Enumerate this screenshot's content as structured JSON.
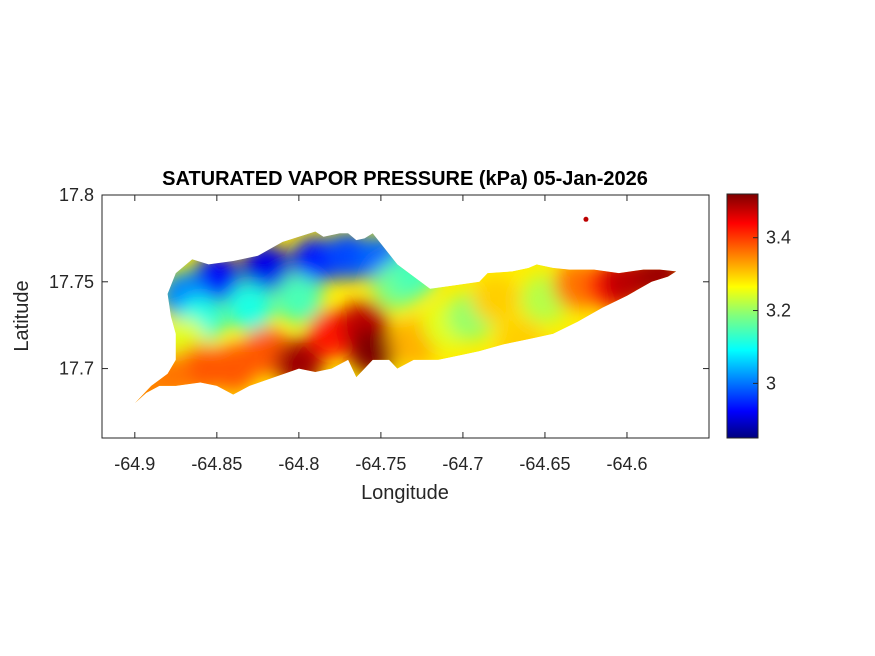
{
  "chart_data": {
    "type": "heatmap",
    "title": "SATURATED VAPOR PRESSURE (kPa) 05-Jan-2026",
    "xlabel": "Longitude",
    "ylabel": "Latitude",
    "xlim": [
      -64.92,
      -64.55
    ],
    "ylim": [
      17.66,
      17.8
    ],
    "xticks": [
      -64.9,
      -64.85,
      -64.8,
      -64.75,
      -64.7,
      -64.65,
      -64.6
    ],
    "xtick_labels": [
      "-64.9",
      "-64.85",
      "-64.8",
      "-64.75",
      "-64.7",
      "-64.65",
      "-64.6"
    ],
    "yticks": [
      17.7,
      17.75,
      17.8
    ],
    "ytick_labels": [
      "17.7",
      "17.75",
      "17.8"
    ],
    "colorbar": {
      "colormap": "jet",
      "range": [
        2.85,
        3.52
      ],
      "ticks": [
        3.0,
        3.2,
        3.4
      ],
      "tick_labels": [
        "3",
        "3.2",
        "3.4"
      ]
    },
    "island_outline": [
      [
        -64.9,
        17.68
      ],
      [
        -64.893,
        17.686
      ],
      [
        -64.885,
        17.69
      ],
      [
        -64.875,
        17.69
      ],
      [
        -64.86,
        17.692
      ],
      [
        -64.85,
        17.69
      ],
      [
        -64.84,
        17.685
      ],
      [
        -64.83,
        17.69
      ],
      [
        -64.815,
        17.695
      ],
      [
        -64.8,
        17.7
      ],
      [
        -64.79,
        17.698
      ],
      [
        -64.78,
        17.7
      ],
      [
        -64.77,
        17.705
      ],
      [
        -64.765,
        17.695
      ],
      [
        -64.76,
        17.7
      ],
      [
        -64.755,
        17.705
      ],
      [
        -64.745,
        17.705
      ],
      [
        -64.74,
        17.7
      ],
      [
        -64.73,
        17.705
      ],
      [
        -64.715,
        17.705
      ],
      [
        -64.7,
        17.708
      ],
      [
        -64.69,
        17.71
      ],
      [
        -64.675,
        17.714
      ],
      [
        -64.66,
        17.717
      ],
      [
        -64.645,
        17.72
      ],
      [
        -64.63,
        17.727
      ],
      [
        -64.615,
        17.735
      ],
      [
        -64.6,
        17.742
      ],
      [
        -64.585,
        17.75
      ],
      [
        -64.575,
        17.753
      ],
      [
        -64.57,
        17.756
      ],
      [
        -64.58,
        17.757
      ],
      [
        -64.59,
        17.757
      ],
      [
        -64.605,
        17.755
      ],
      [
        -64.62,
        17.757
      ],
      [
        -64.635,
        17.757
      ],
      [
        -64.645,
        17.758
      ],
      [
        -64.655,
        17.76
      ],
      [
        -64.66,
        17.758
      ],
      [
        -64.67,
        17.756
      ],
      [
        -64.685,
        17.755
      ],
      [
        -64.69,
        17.75
      ],
      [
        -64.705,
        17.748
      ],
      [
        -64.72,
        17.746
      ],
      [
        -64.73,
        17.753
      ],
      [
        -64.74,
        17.76
      ],
      [
        -64.745,
        17.766
      ],
      [
        -64.75,
        17.772
      ],
      [
        -64.755,
        17.778
      ],
      [
        -64.76,
        17.775
      ],
      [
        -64.765,
        17.774
      ],
      [
        -64.77,
        17.778
      ],
      [
        -64.775,
        17.778
      ],
      [
        -64.785,
        17.776
      ],
      [
        -64.79,
        17.779
      ],
      [
        -64.81,
        17.773
      ],
      [
        -64.825,
        17.765
      ],
      [
        -64.84,
        17.762
      ],
      [
        -64.855,
        17.76
      ],
      [
        -64.865,
        17.763
      ],
      [
        -64.875,
        17.755
      ],
      [
        -64.88,
        17.743
      ],
      [
        -64.878,
        17.73
      ],
      [
        -64.875,
        17.72
      ],
      [
        -64.875,
        17.705
      ],
      [
        -64.88,
        17.697
      ],
      [
        -64.89,
        17.69
      ],
      [
        -64.9,
        17.68
      ]
    ],
    "islet": {
      "lon": -64.625,
      "lat": 17.786,
      "value": 3.48
    },
    "field_points": [
      {
        "lon": -64.85,
        "lat": 17.752,
        "value": 2.93
      },
      {
        "lon": -64.82,
        "lat": 17.758,
        "value": 2.92
      },
      {
        "lon": -64.79,
        "lat": 17.762,
        "value": 2.95
      },
      {
        "lon": -64.77,
        "lat": 17.765,
        "value": 2.98
      },
      {
        "lon": -64.75,
        "lat": 17.763,
        "value": 3.0
      },
      {
        "lon": -64.87,
        "lat": 17.742,
        "value": 3.02
      },
      {
        "lon": -64.86,
        "lat": 17.728,
        "value": 3.12
      },
      {
        "lon": -64.83,
        "lat": 17.735,
        "value": 3.12
      },
      {
        "lon": -64.8,
        "lat": 17.74,
        "value": 3.15
      },
      {
        "lon": -64.74,
        "lat": 17.748,
        "value": 3.18
      },
      {
        "lon": -64.73,
        "lat": 17.755,
        "value": 3.15
      },
      {
        "lon": -64.87,
        "lat": 17.715,
        "value": 3.25
      },
      {
        "lon": -64.86,
        "lat": 17.7,
        "value": 3.38
      },
      {
        "lon": -64.88,
        "lat": 17.695,
        "value": 3.36
      },
      {
        "lon": -64.895,
        "lat": 17.685,
        "value": 3.35
      },
      {
        "lon": -64.84,
        "lat": 17.7,
        "value": 3.38
      },
      {
        "lon": -64.82,
        "lat": 17.71,
        "value": 3.38
      },
      {
        "lon": -64.8,
        "lat": 17.703,
        "value": 3.5
      },
      {
        "lon": -64.78,
        "lat": 17.72,
        "value": 3.42
      },
      {
        "lon": -64.76,
        "lat": 17.725,
        "value": 3.48
      },
      {
        "lon": -64.755,
        "lat": 17.71,
        "value": 3.52
      },
      {
        "lon": -64.73,
        "lat": 17.715,
        "value": 3.32
      },
      {
        "lon": -64.71,
        "lat": 17.725,
        "value": 3.25
      },
      {
        "lon": -64.695,
        "lat": 17.73,
        "value": 3.2
      },
      {
        "lon": -64.68,
        "lat": 17.74,
        "value": 3.3
      },
      {
        "lon": -64.665,
        "lat": 17.715,
        "value": 3.3
      },
      {
        "lon": -64.65,
        "lat": 17.74,
        "value": 3.22
      },
      {
        "lon": -64.63,
        "lat": 17.748,
        "value": 3.36
      },
      {
        "lon": -64.61,
        "lat": 17.748,
        "value": 3.42
      },
      {
        "lon": -64.6,
        "lat": 17.75,
        "value": 3.48
      },
      {
        "lon": -64.58,
        "lat": 17.754,
        "value": 3.5
      }
    ]
  }
}
